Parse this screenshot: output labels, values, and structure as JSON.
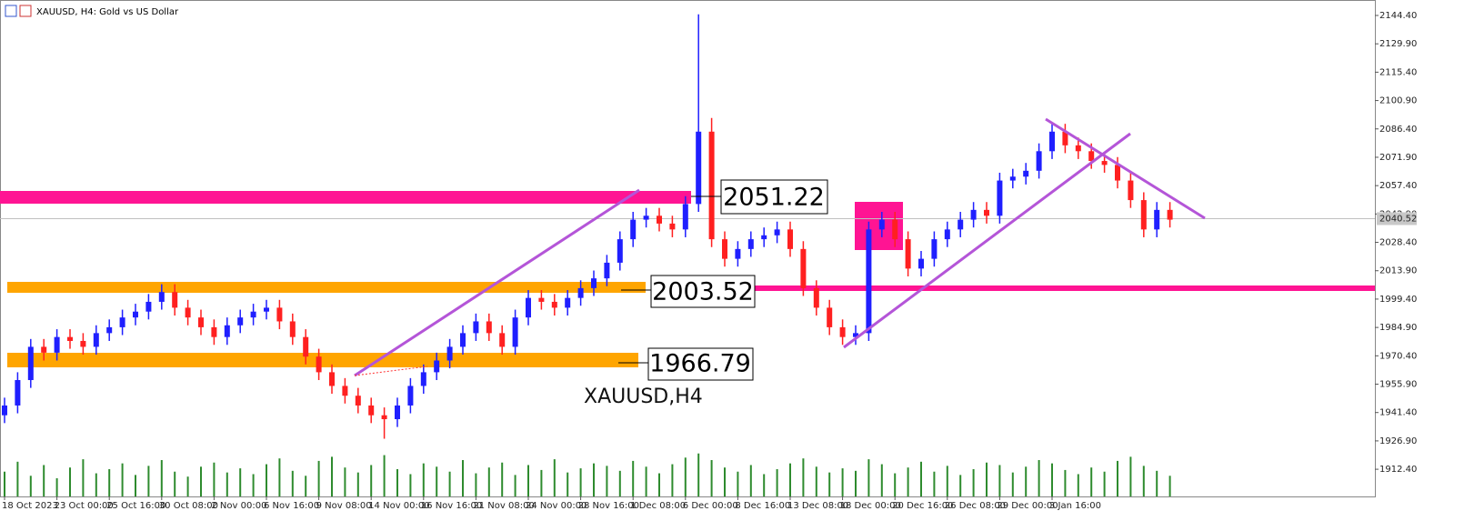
{
  "chart_data": {
    "type": "candlestick",
    "title": "XAUUSD, H4:  Gold vs US Dollar",
    "watermark": "XAUUSD,H4",
    "up_color": "#1f1fff",
    "down_color": "#ff2020",
    "volume_color": "#2e8b2e",
    "ylim": [
      1898.5,
      2152.3
    ],
    "yticks": [
      {
        "value": 2144.4,
        "label": "2144.40"
      },
      {
        "value": 2129.9,
        "label": "2129.90"
      },
      {
        "value": 2115.4,
        "label": "2115.40"
      },
      {
        "value": 2100.9,
        "label": "2100.90"
      },
      {
        "value": 2086.4,
        "label": "2086.40"
      },
      {
        "value": 2071.9,
        "label": "2071.90"
      },
      {
        "value": 2057.4,
        "label": "2057.40"
      },
      {
        "value": 2042.9,
        "label": "2042.90"
      },
      {
        "value": 2028.4,
        "label": "2028.40"
      },
      {
        "value": 2013.9,
        "label": "2013.90"
      },
      {
        "value": 1999.4,
        "label": "1999.40"
      },
      {
        "value": 1984.9,
        "label": "1984.90"
      },
      {
        "value": 1970.4,
        "label": "1970.40"
      },
      {
        "value": 1955.9,
        "label": "1955.90"
      },
      {
        "value": 1941.4,
        "label": "1941.40"
      },
      {
        "value": 1926.9,
        "label": "1926.90"
      },
      {
        "value": 1912.4,
        "label": "1912.40"
      }
    ],
    "current_price": 2040.52,
    "annotations": [
      "2051.22",
      "2003.52",
      "1966.79"
    ],
    "categories": [
      "18 Oct 2023",
      null,
      null,
      null,
      "23 Oct 00:00",
      null,
      null,
      null,
      "25 Oct 16:00",
      null,
      null,
      null,
      "30 Oct 08:00",
      null,
      null,
      null,
      "2 Nov 00:00",
      null,
      null,
      null,
      "6 Nov 16:00",
      null,
      null,
      null,
      "9 Nov 08:00",
      null,
      null,
      null,
      "14 Nov 00:00",
      null,
      null,
      null,
      "16 Nov 16:00",
      null,
      null,
      null,
      "21 Nov 08:00",
      null,
      null,
      null,
      "24 Nov 00:00",
      null,
      null,
      null,
      "28 Nov 16:00",
      null,
      null,
      null,
      "1 Dec 08:00",
      null,
      null,
      null,
      "6 Dec 00:00",
      null,
      null,
      null,
      "8 Dec 16:00",
      null,
      null,
      null,
      "13 Dec 08:00",
      null,
      null,
      null,
      "18 Dec 00:00",
      null,
      null,
      null,
      "20 Dec 16:00",
      null,
      null,
      null,
      "26 Dec 08:00",
      null,
      null,
      null,
      "29 Dec 00:00",
      null,
      null,
      null,
      "3 Jan 16:00",
      null,
      null,
      null,
      null,
      null,
      null,
      null,
      null,
      null
    ],
    "candles": [
      [
        1940,
        1949,
        1936,
        1945
      ],
      [
        1945,
        1962,
        1941,
        1958
      ],
      [
        1958,
        1979,
        1954,
        1975
      ],
      [
        1975,
        1979,
        1968,
        1972
      ],
      [
        1972,
        1984,
        1968,
        1980
      ],
      [
        1980,
        1984,
        1974,
        1978
      ],
      [
        1978,
        1982,
        1971,
        1975
      ],
      [
        1975,
        1986,
        1971,
        1982
      ],
      [
        1982,
        1989,
        1978,
        1985
      ],
      [
        1985,
        1994,
        1981,
        1990
      ],
      [
        1990,
        1997,
        1986,
        1993
      ],
      [
        1993,
        2002,
        1989,
        1998
      ],
      [
        1998,
        2007,
        1994,
        2003
      ],
      [
        2003,
        2007,
        1991,
        1995
      ],
      [
        1995,
        1999,
        1986,
        1990
      ],
      [
        1990,
        1994,
        1981,
        1985
      ],
      [
        1985,
        1989,
        1976,
        1980
      ],
      [
        1980,
        1990,
        1976,
        1986
      ],
      [
        1986,
        1994,
        1982,
        1990
      ],
      [
        1990,
        1997,
        1986,
        1993
      ],
      [
        1993,
        1999,
        1989,
        1995
      ],
      [
        1995,
        1999,
        1984,
        1988
      ],
      [
        1988,
        1992,
        1976,
        1980
      ],
      [
        1980,
        1984,
        1966,
        1970
      ],
      [
        1970,
        1974,
        1958,
        1962
      ],
      [
        1962,
        1966,
        1951,
        1955
      ],
      [
        1955,
        1959,
        1946,
        1950
      ],
      [
        1950,
        1954,
        1941,
        1945
      ],
      [
        1945,
        1949,
        1936,
        1940
      ],
      [
        1940,
        1944,
        1928,
        1938
      ],
      [
        1938,
        1949,
        1934,
        1945
      ],
      [
        1945,
        1959,
        1941,
        1955
      ],
      [
        1955,
        1966,
        1951,
        1962
      ],
      [
        1962,
        1972,
        1958,
        1968
      ],
      [
        1968,
        1979,
        1964,
        1975
      ],
      [
        1975,
        1986,
        1971,
        1982
      ],
      [
        1982,
        1992,
        1978,
        1988
      ],
      [
        1988,
        1992,
        1978,
        1982
      ],
      [
        1982,
        1986,
        1971,
        1975
      ],
      [
        1975,
        1994,
        1971,
        1990
      ],
      [
        1990,
        2004,
        1986,
        2000
      ],
      [
        2000,
        2004,
        1994,
        1998
      ],
      [
        1998,
        2002,
        1991,
        1995
      ],
      [
        1995,
        2004,
        1991,
        2000
      ],
      [
        2000,
        2009,
        1996,
        2005
      ],
      [
        2005,
        2014,
        2001,
        2010
      ],
      [
        2010,
        2022,
        2006,
        2018
      ],
      [
        2018,
        2034,
        2014,
        2030
      ],
      [
        2030,
        2044,
        2026,
        2040
      ],
      [
        2040,
        2046,
        2036,
        2042
      ],
      [
        2042,
        2046,
        2034,
        2038
      ],
      [
        2038,
        2042,
        2031,
        2035
      ],
      [
        2035,
        2052,
        2031,
        2048
      ],
      [
        2048,
        2145,
        2044,
        2085
      ],
      [
        2085,
        2092,
        2026,
        2030
      ],
      [
        2030,
        2034,
        2016,
        2020
      ],
      [
        2020,
        2029,
        2016,
        2025
      ],
      [
        2025,
        2034,
        2021,
        2030
      ],
      [
        2030,
        2036,
        2026,
        2032
      ],
      [
        2032,
        2039,
        2028,
        2035
      ],
      [
        2035,
        2039,
        2021,
        2025
      ],
      [
        2025,
        2029,
        2001,
        2005
      ],
      [
        2005,
        2009,
        1991,
        1995
      ],
      [
        1995,
        1999,
        1981,
        1985
      ],
      [
        1985,
        1989,
        1976,
        1980
      ],
      [
        1980,
        1986,
        1976,
        1982
      ],
      [
        1982,
        2039,
        1978,
        2035
      ],
      [
        2035,
        2044,
        2031,
        2040
      ],
      [
        2040,
        2044,
        2026,
        2030
      ],
      [
        2030,
        2034,
        2011,
        2015
      ],
      [
        2015,
        2024,
        2011,
        2020
      ],
      [
        2020,
        2034,
        2016,
        2030
      ],
      [
        2030,
        2039,
        2026,
        2035
      ],
      [
        2035,
        2044,
        2031,
        2040
      ],
      [
        2040,
        2049,
        2036,
        2045
      ],
      [
        2045,
        2049,
        2038,
        2042
      ],
      [
        2042,
        2064,
        2038,
        2060
      ],
      [
        2060,
        2066,
        2056,
        2062
      ],
      [
        2062,
        2069,
        2058,
        2065
      ],
      [
        2065,
        2079,
        2061,
        2075
      ],
      [
        2075,
        2089,
        2071,
        2085
      ],
      [
        2085,
        2089,
        2074,
        2078
      ],
      [
        2078,
        2082,
        2071,
        2075
      ],
      [
        2075,
        2079,
        2066,
        2070
      ],
      [
        2070,
        2074,
        2064,
        2068
      ],
      [
        2068,
        2072,
        2056,
        2060
      ],
      [
        2060,
        2064,
        2046,
        2050
      ],
      [
        2050,
        2054,
        2031,
        2035
      ],
      [
        2035,
        2049,
        2031,
        2045
      ],
      [
        2045,
        2049,
        2036,
        2040
      ]
    ],
    "volume_lim": [
      0,
      110
    ],
    "volume": [
      30,
      42,
      25,
      38,
      22,
      35,
      45,
      28,
      33,
      40,
      26,
      37,
      44,
      30,
      24,
      36,
      41,
      29,
      34,
      27,
      39,
      46,
      31,
      25,
      43,
      48,
      35,
      29,
      38,
      50,
      33,
      27,
      40,
      36,
      30,
      44,
      28,
      35,
      41,
      26,
      38,
      32,
      45,
      29,
      34,
      40,
      37,
      31,
      43,
      36,
      28,
      39,
      47,
      52,
      44,
      35,
      30,
      38,
      27,
      33,
      40,
      46,
      36,
      29,
      34,
      31,
      45,
      39,
      28,
      35,
      42,
      30,
      37,
      26,
      33,
      41,
      38,
      29,
      36,
      44,
      40,
      32,
      27,
      35,
      30,
      43,
      48,
      37,
      31,
      25
    ]
  }
}
